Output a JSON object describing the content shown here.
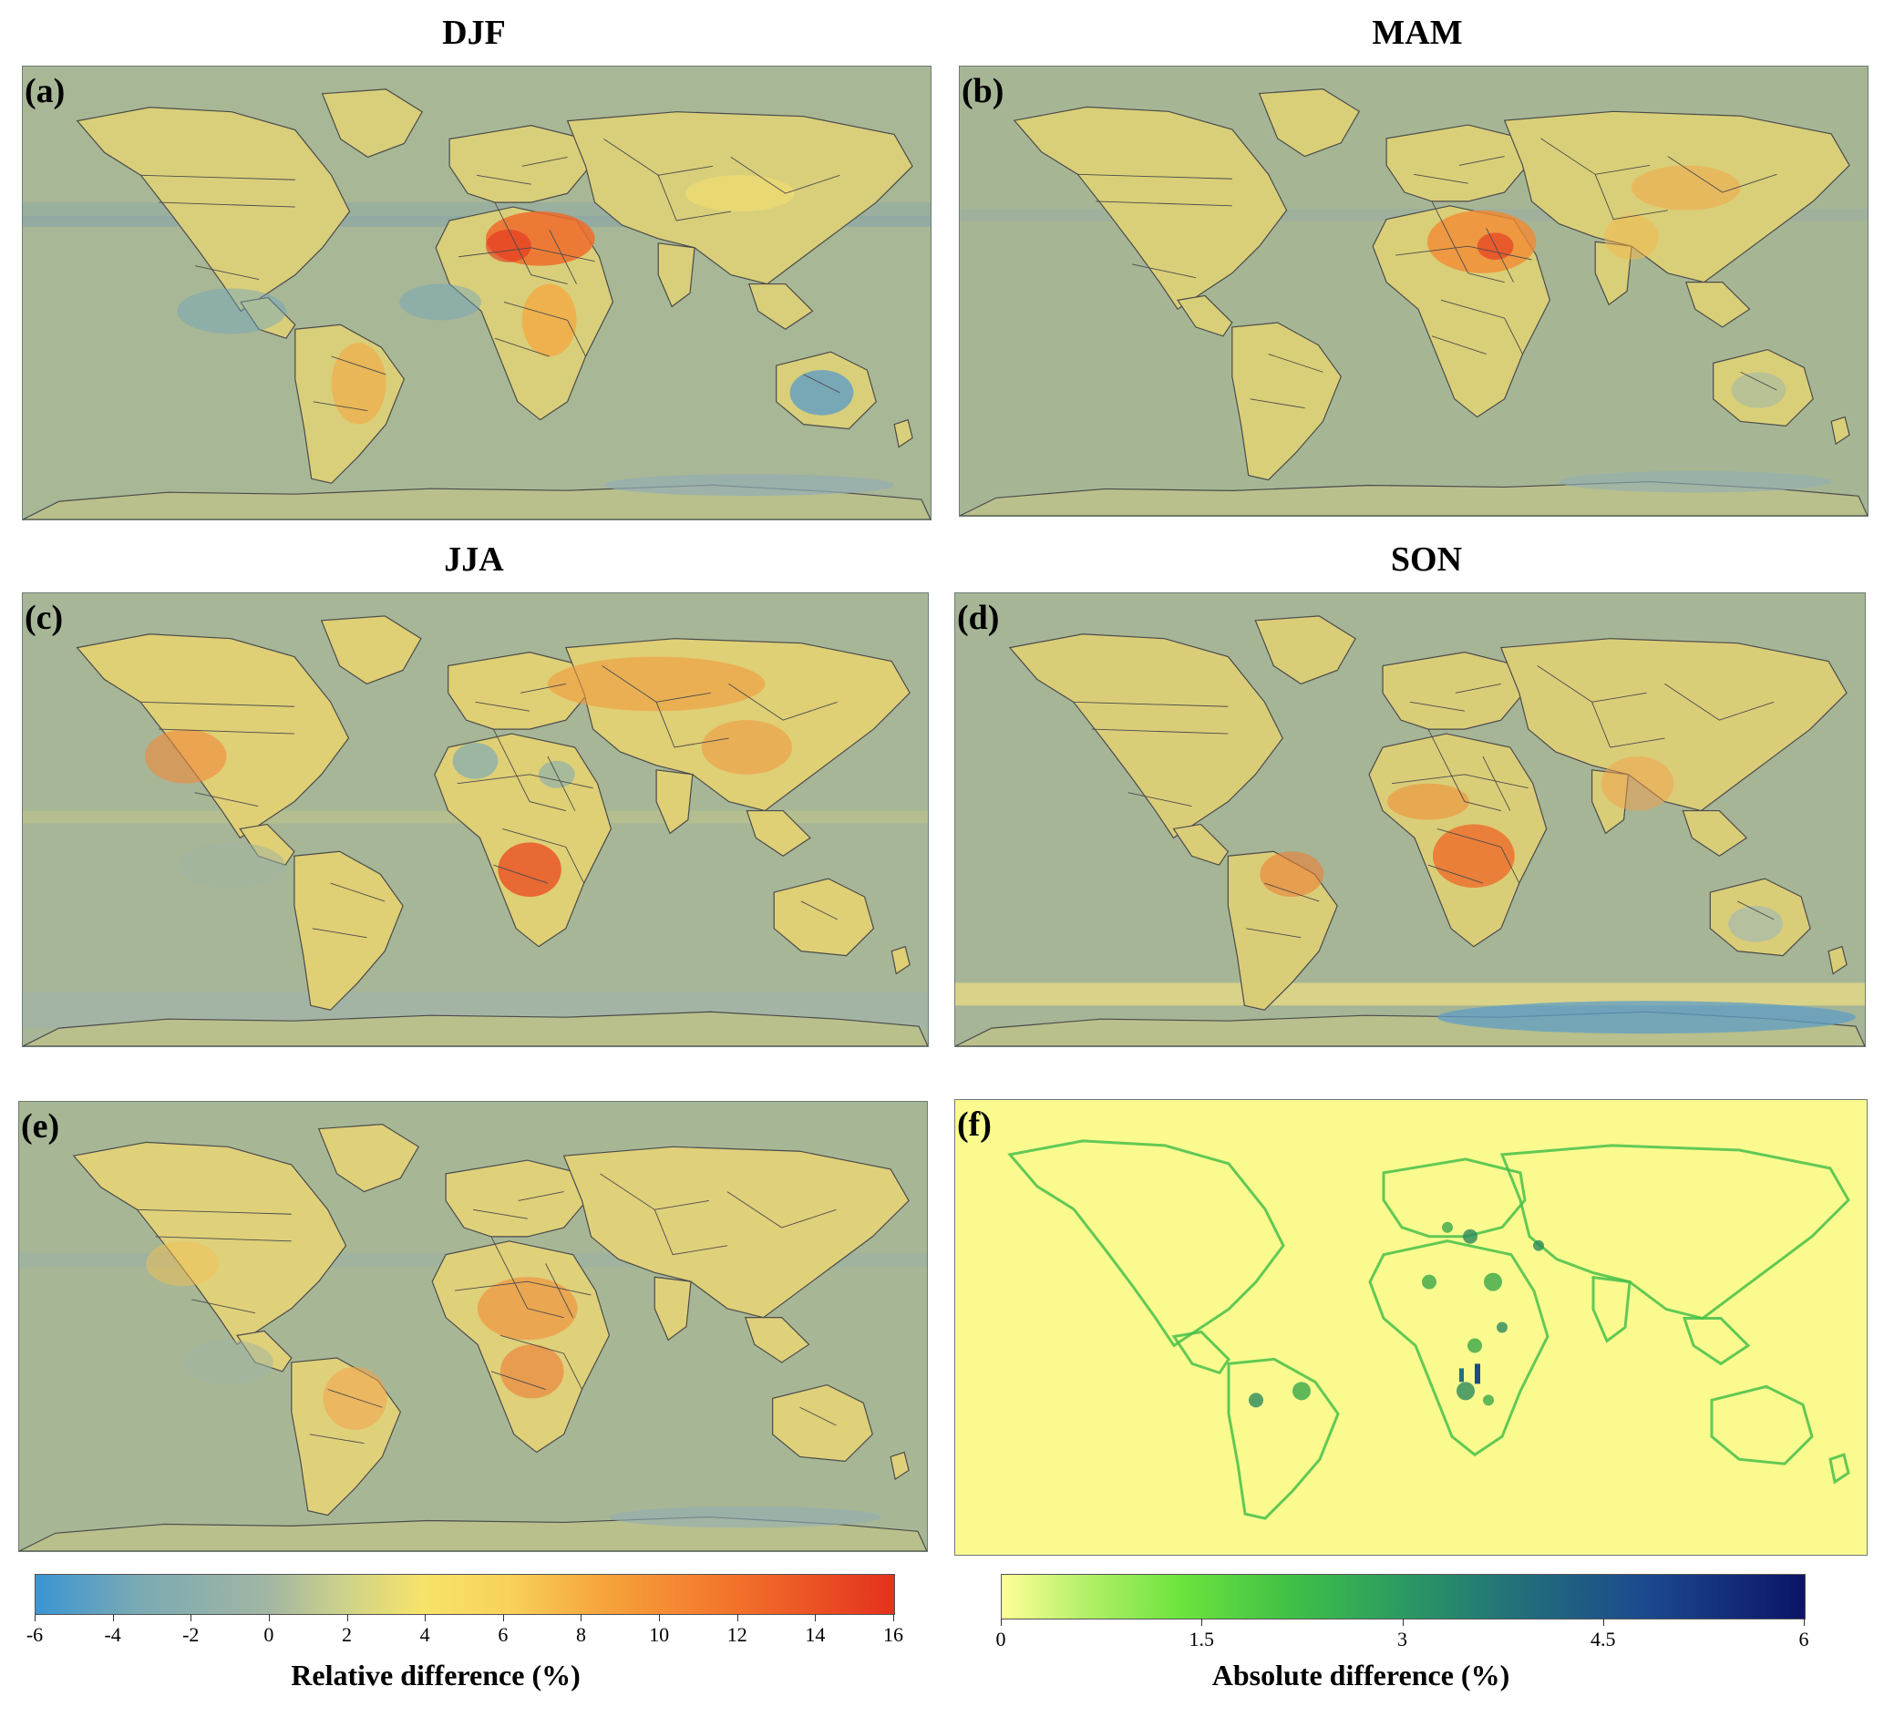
{
  "seasons": [
    "DJF",
    "MAM",
    "JJA",
    "SON"
  ],
  "panels": [
    {
      "id": "a",
      "label": "(a)",
      "season": "DJF",
      "type": "relative"
    },
    {
      "id": "b",
      "label": "(b)",
      "season": "MAM",
      "type": "relative"
    },
    {
      "id": "c",
      "label": "(c)",
      "season": "JJA",
      "type": "relative"
    },
    {
      "id": "d",
      "label": "(d)",
      "season": "SON",
      "type": "relative"
    },
    {
      "id": "e",
      "label": "(e)",
      "season": "",
      "type": "relative"
    },
    {
      "id": "f",
      "label": "(f)",
      "season": "",
      "type": "absolute"
    }
  ],
  "colorbars": {
    "relative": {
      "label": "Relative difference (%)",
      "ticks": [
        "-6",
        "-4",
        "-2",
        "0",
        "2",
        "4",
        "6",
        "8",
        "10",
        "12",
        "14",
        "16"
      ],
      "range": [
        -6,
        16
      ],
      "colors": [
        "#3a95d3",
        "#a2b6a3",
        "#f7e36a",
        "#f6a43c",
        "#e4311e"
      ]
    },
    "absolute": {
      "label": "Absolute difference (%)",
      "ticks": [
        "0",
        "1.5",
        "3",
        "4.5",
        "6"
      ],
      "range": [
        0,
        6
      ],
      "colors": [
        "#ffff98",
        "#6ee43e",
        "#2b9a62",
        "#1c4a8e",
        "#0c1466"
      ]
    }
  }
}
